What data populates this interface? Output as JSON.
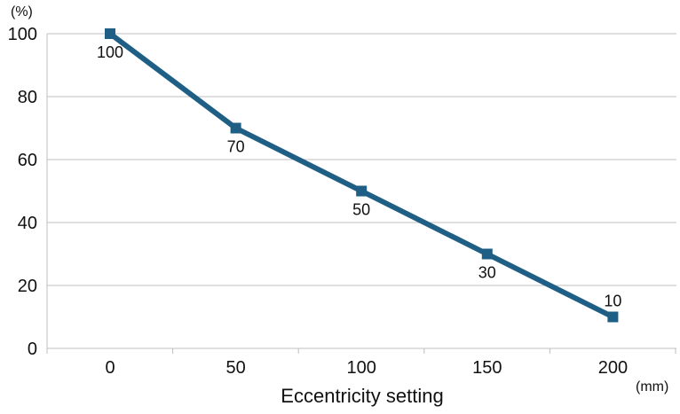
{
  "chart_data": {
    "type": "line",
    "x": [
      0,
      50,
      100,
      150,
      200
    ],
    "series": [
      {
        "values": [
          100,
          70,
          50,
          30,
          10
        ],
        "data_labels": [
          "100",
          "70",
          "50",
          "30",
          "10"
        ]
      }
    ],
    "xlabel": "Eccentricity setting",
    "x_unit": "(mm)",
    "y_unit": "(%)",
    "ylim": [
      0,
      100
    ],
    "yticks": [
      "0",
      "20",
      "40",
      "60",
      "80",
      "100"
    ],
    "xticks": [
      "0",
      "50",
      "100",
      "150",
      "200"
    ],
    "grid": "horizontal",
    "line_color": "#1f5f86",
    "grid_color": "#bfbfbf"
  }
}
